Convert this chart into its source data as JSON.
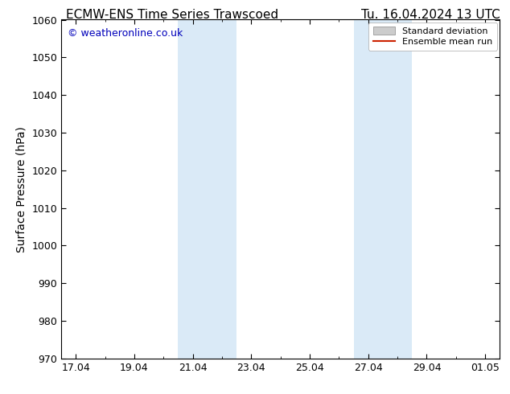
{
  "title_left": "ECMW-ENS Time Series Trawscoed",
  "title_right": "Tu. 16.04.2024 13 UTC",
  "ylabel": "Surface Pressure (hPa)",
  "ylim": [
    970,
    1060
  ],
  "yticks": [
    970,
    980,
    990,
    1000,
    1010,
    1020,
    1030,
    1040,
    1050,
    1060
  ],
  "xtick_labels": [
    "17.04",
    "19.04",
    "21.04",
    "23.04",
    "25.04",
    "27.04",
    "29.04",
    "01.05"
  ],
  "xtick_positions": [
    0,
    2,
    4,
    6,
    8,
    10,
    12,
    14
  ],
  "xmin": -0.5,
  "xmax": 14.5,
  "shaded_bands": [
    {
      "x_start": 3.5,
      "x_end": 5.5,
      "color": "#daeaf7"
    },
    {
      "x_start": 9.5,
      "x_end": 11.5,
      "color": "#daeaf7"
    }
  ],
  "watermark_text": "© weatheronline.co.uk",
  "watermark_color": "#0000bb",
  "legend_label_std": "Standard deviation",
  "legend_label_ens": "Ensemble mean run",
  "legend_fill_color": "#cccccc",
  "legend_line_color": "#cc2200",
  "bg_color": "#ffffff",
  "spine_color": "#000000",
  "tick_color": "#000000",
  "title_fontsize": 11,
  "label_fontsize": 10,
  "tick_fontsize": 9,
  "watermark_fontsize": 9
}
